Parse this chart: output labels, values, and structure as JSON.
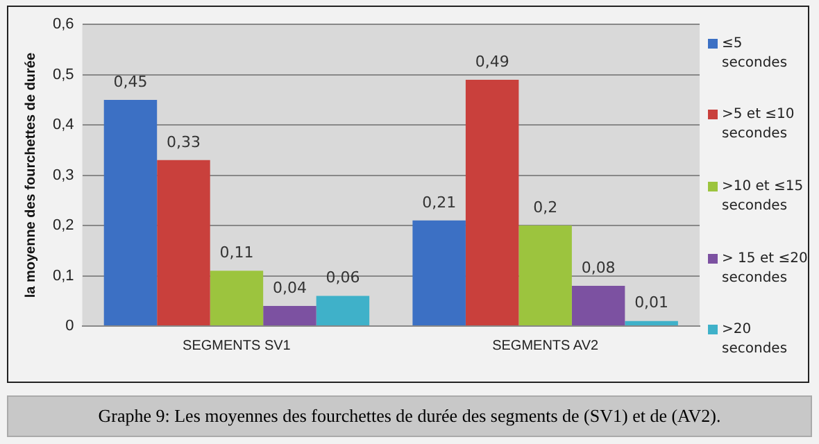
{
  "chart_data": {
    "type": "bar",
    "ylabel": "la moyenne des fourchettes de durée",
    "categories": [
      "SEGMENTS SV1",
      "SEGMENTS AV2"
    ],
    "series": [
      {
        "name": "≤5 secondes",
        "color": "#3c70c4",
        "values": [
          0.45,
          0.21
        ],
        "value_labels": [
          "0,45",
          "0,21"
        ]
      },
      {
        "name": ">5 et ≤10 secondes",
        "color": "#c9403c",
        "values": [
          0.33,
          0.49
        ],
        "value_labels": [
          "0,33",
          "0,49"
        ]
      },
      {
        "name": ">10 et ≤15 secondes",
        "color": "#9cc43e",
        "values": [
          0.11,
          0.2
        ],
        "value_labels": [
          "0,11",
          "0,2"
        ]
      },
      {
        "name": "> 15 et ≤20 secondes",
        "color": "#7c51a1",
        "values": [
          0.04,
          0.08
        ],
        "value_labels": [
          "0,04",
          "0,08"
        ]
      },
      {
        "name": ">20 secondes",
        "color": "#3fb1c9",
        "values": [
          0.06,
          0.01
        ],
        "value_labels": [
          "0,06",
          "0,01"
        ]
      }
    ],
    "ylim": [
      0,
      0.6
    ],
    "yticks": [
      0,
      {
        "value": 0.1,
        "label": "0,1"
      },
      {
        "value": 0.2,
        "label": "0,2"
      },
      {
        "value": 0.3,
        "label": "0,3"
      },
      {
        "value": 0.4,
        "label": "0,4"
      },
      {
        "value": 0.5,
        "label": "0,5"
      },
      {
        "value": 0.6,
        "label": "0,6"
      }
    ],
    "grid": "y",
    "legend": "right",
    "annotations": [
      "Graphe 9: Les  moyennes des fourchettes de durée des segments de (SV1) et de (AV2)."
    ]
  }
}
